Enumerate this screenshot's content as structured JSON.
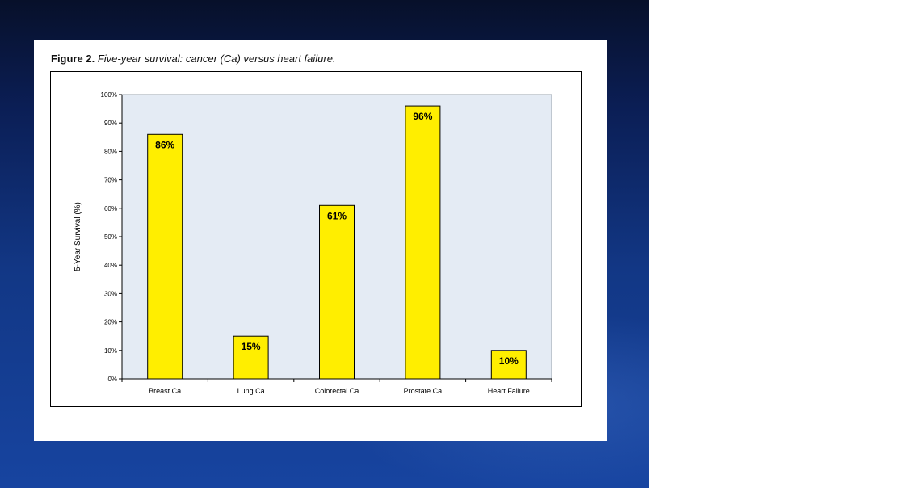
{
  "figure": {
    "caption_label": "Figure 2.",
    "caption_text": "Five-year survival: cancer (Ca) versus heart failure."
  },
  "chart_data": {
    "type": "bar",
    "categories": [
      "Breast Ca",
      "Lung Ca",
      "Colorectal Ca",
      "Prostate Ca",
      "Heart Failure"
    ],
    "values": [
      86,
      15,
      61,
      96,
      10
    ],
    "data_labels": [
      "86%",
      "15%",
      "61%",
      "96%",
      "10%"
    ],
    "title": "",
    "xlabel": "",
    "ylabel": "5-Year Survival (%)",
    "ylim": [
      0,
      100
    ],
    "yticks": [
      0,
      10,
      20,
      30,
      40,
      50,
      60,
      70,
      80,
      90,
      100
    ],
    "ytick_labels": [
      "0%",
      "10%",
      "20%",
      "30%",
      "40%",
      "50%",
      "60%",
      "70%",
      "80%",
      "90%",
      "100%"
    ],
    "grid": false,
    "colors": {
      "bar": "#ffee00",
      "bar_stroke": "#000000",
      "plot_bg": "#e4ebf4"
    }
  }
}
